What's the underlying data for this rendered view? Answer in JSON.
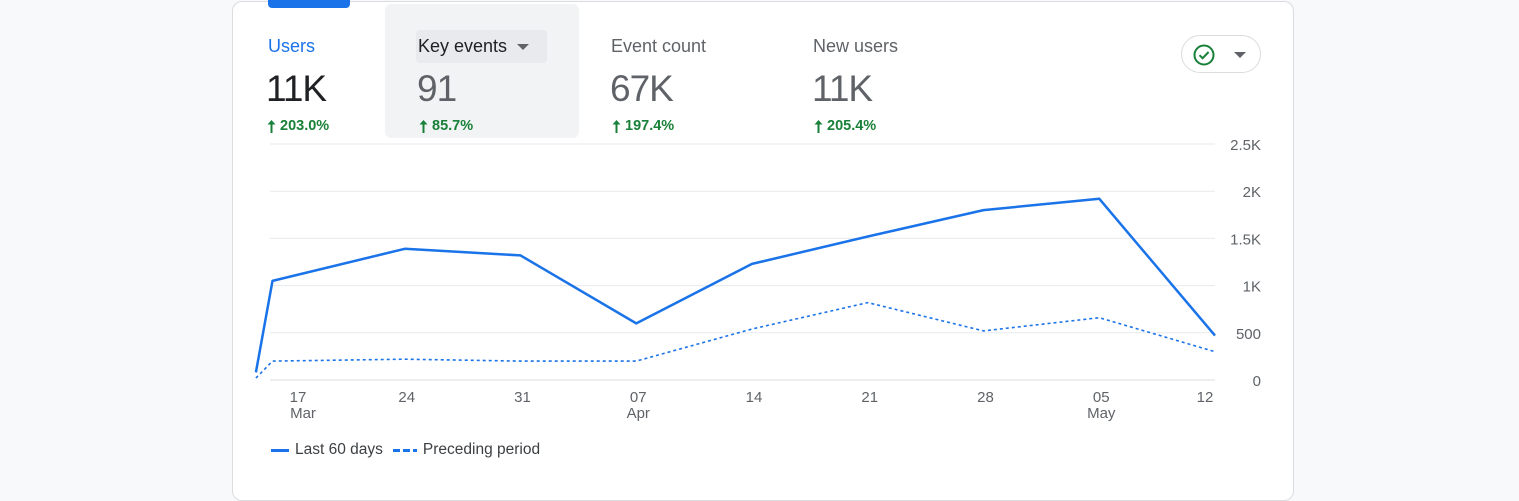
{
  "metrics": [
    {
      "label": "Users",
      "value": "11K",
      "change": "203.0%"
    },
    {
      "label": "Key events",
      "value": "91",
      "change": "85.7%"
    },
    {
      "label": "Event count",
      "value": "67K",
      "change": "197.4%"
    },
    {
      "label": "New users",
      "value": "11K",
      "change": "205.4%"
    }
  ],
  "compare_button": {
    "icon": "check-circle-icon",
    "caret": "caret-down-icon"
  },
  "colors": {
    "accent": "#1a73e8",
    "positive": "#188038",
    "grid": "#e8eaed"
  },
  "chart_data": {
    "type": "line",
    "x_ticks": [
      {
        "day": "17",
        "month": "Mar"
      },
      {
        "day": "24",
        "month": ""
      },
      {
        "day": "31",
        "month": ""
      },
      {
        "day": "07",
        "month": "Apr"
      },
      {
        "day": "14",
        "month": ""
      },
      {
        "day": "21",
        "month": ""
      },
      {
        "day": "28",
        "month": ""
      },
      {
        "day": "05",
        "month": "May"
      },
      {
        "day": "12",
        "month": ""
      }
    ],
    "y_ticks": [
      "0",
      "500",
      "1K",
      "1.5K",
      "2K",
      "2.5K"
    ],
    "ylim": [
      0,
      2500
    ],
    "grid": true,
    "legend_position": "bottom-left",
    "series": [
      {
        "name": "Last 60 days",
        "style": "solid",
        "points": [
          {
            "x": "2024-03-15",
            "y": 80
          },
          {
            "x": "2024-03-16",
            "y": 1050
          },
          {
            "x": "2024-03-24",
            "y": 1390
          },
          {
            "x": "2024-03-31",
            "y": 1320
          },
          {
            "x": "2024-04-07",
            "y": 600
          },
          {
            "x": "2024-04-14",
            "y": 1230
          },
          {
            "x": "2024-04-21",
            "y": 1520
          },
          {
            "x": "2024-04-28",
            "y": 1800
          },
          {
            "x": "2024-05-05",
            "y": 1920
          },
          {
            "x": "2024-05-12",
            "y": 470
          }
        ]
      },
      {
        "name": "Preceding period",
        "style": "dashed",
        "points": [
          {
            "x": "2024-03-15",
            "y": 20
          },
          {
            "x": "2024-03-16",
            "y": 200
          },
          {
            "x": "2024-03-24",
            "y": 220
          },
          {
            "x": "2024-03-31",
            "y": 200
          },
          {
            "x": "2024-04-07",
            "y": 200
          },
          {
            "x": "2024-04-14",
            "y": 540
          },
          {
            "x": "2024-04-21",
            "y": 820
          },
          {
            "x": "2024-04-28",
            "y": 520
          },
          {
            "x": "2024-05-05",
            "y": 660
          },
          {
            "x": "2024-05-12",
            "y": 300
          }
        ]
      }
    ]
  }
}
